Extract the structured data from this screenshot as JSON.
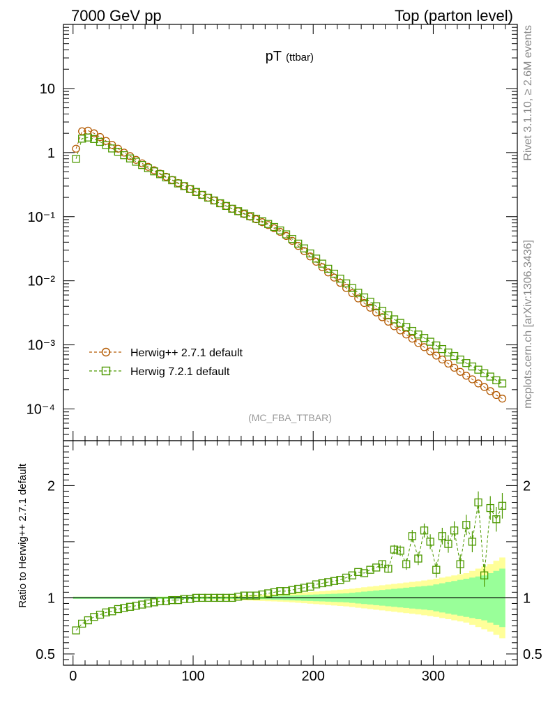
{
  "header": {
    "left": "7000 GeV pp",
    "right": "Top (parton level)"
  },
  "side": {
    "rivet": "Rivet 3.1.10, ≥ 2.6M events",
    "mcplots": "mcplots.cern.ch [arXiv:1306.3436]"
  },
  "title": {
    "main": "pT",
    "sub": "(ttbar)"
  },
  "analysis": "(MC_FBA_TTBAR)",
  "legend": [
    {
      "label": "Herwig++ 2.7.1 default",
      "color": "#b35900",
      "marker": "circle"
    },
    {
      "label": "Herwig 7.2.1 default",
      "color": "#4d9900",
      "marker": "square"
    }
  ],
  "ratio_ylabel": "Ratio to Herwig++ 2.7.1 default",
  "colors": {
    "band_inner": "#99ff99",
    "band_outer": "#ffff99",
    "ref": "#b35900",
    "mc": "#4d9900"
  },
  "chart_data": {
    "type": "scatter",
    "x_ticks": [
      "0",
      "100",
      "200",
      "300"
    ],
    "top_y_ticks": [
      "10",
      "1",
      "10⁻¹",
      "10⁻²",
      "10⁻³",
      "10⁻⁴"
    ],
    "ratio_y_ticks": [
      "2",
      "1",
      "0.5"
    ],
    "xlim": [
      -8,
      370
    ],
    "ylim_main": [
      3.2e-05,
      100
    ],
    "ylim_ratio": [
      0.4,
      2.4
    ],
    "y_scale": "log",
    "x": [
      2.5,
      7.5,
      12.5,
      17.5,
      22.5,
      27.5,
      32.5,
      37.5,
      42.5,
      47.5,
      52.5,
      57.5,
      62.5,
      67.5,
      72.5,
      77.5,
      82.5,
      87.5,
      92.5,
      97.5,
      102.5,
      107.5,
      112.5,
      117.5,
      122.5,
      127.5,
      132.5,
      137.5,
      142.5,
      147.5,
      152.5,
      157.5,
      162.5,
      167.5,
      172.5,
      177.5,
      182.5,
      187.5,
      192.5,
      197.5,
      202.5,
      207.5,
      212.5,
      217.5,
      222.5,
      227.5,
      232.5,
      237.5,
      242.5,
      247.5,
      252.5,
      257.5,
      262.5,
      267.5,
      272.5,
      277.5,
      282.5,
      287.5,
      292.5,
      297.5,
      302.5,
      307.5,
      312.5,
      317.5,
      322.5,
      327.5,
      332.5,
      337.5,
      342.5,
      347.5,
      352.5,
      357.5
    ],
    "series": [
      {
        "name": "Herwig++ 2.7.1 default",
        "values": [
          1.15,
          2.15,
          2.2,
          2.0,
          1.75,
          1.52,
          1.32,
          1.15,
          1.0,
          0.88,
          0.77,
          0.68,
          0.6,
          0.53,
          0.47,
          0.42,
          0.375,
          0.335,
          0.3,
          0.27,
          0.243,
          0.219,
          0.198,
          0.179,
          0.162,
          0.147,
          0.133,
          0.121,
          0.11,
          0.1,
          0.091,
          0.082,
          0.074,
          0.066,
          0.058,
          0.05,
          0.042,
          0.035,
          0.029,
          0.024,
          0.0198,
          0.0163,
          0.0135,
          0.0112,
          0.0093,
          0.0077,
          0.0064,
          0.0053,
          0.0045,
          0.0038,
          0.0032,
          0.0027,
          0.0023,
          0.00195,
          0.00168,
          0.00145,
          0.00125,
          0.00107,
          0.00092,
          0.00079,
          0.00068,
          0.00059,
          0.00051,
          0.00044,
          0.00038,
          0.00033,
          0.00029,
          0.00025,
          0.00022,
          0.00019,
          0.000165,
          0.000145
        ]
      },
      {
        "name": "Herwig 7.2.1 default",
        "values": [
          0.8,
          1.65,
          1.72,
          1.63,
          1.47,
          1.31,
          1.16,
          1.03,
          0.91,
          0.81,
          0.72,
          0.64,
          0.57,
          0.51,
          0.46,
          0.41,
          0.37,
          0.33,
          0.3,
          0.27,
          0.243,
          0.219,
          0.198,
          0.179,
          0.162,
          0.147,
          0.133,
          0.122,
          0.112,
          0.102,
          0.093,
          0.085,
          0.077,
          0.069,
          0.061,
          0.053,
          0.045,
          0.038,
          0.032,
          0.0267,
          0.0222,
          0.0185,
          0.0154,
          0.0129,
          0.0108,
          0.0091,
          0.0077,
          0.0065,
          0.0055,
          0.0047,
          0.004,
          0.0034,
          0.0029,
          0.0025,
          0.0022,
          0.0019,
          0.00165,
          0.00145,
          0.00128,
          0.00112,
          0.00098,
          0.00086,
          0.00076,
          0.00067,
          0.00059,
          0.00052,
          0.00046,
          0.00041,
          0.00036,
          0.00032,
          0.00028,
          0.00025
        ]
      }
    ],
    "ratio": [
      0.71,
      0.77,
      0.8,
      0.83,
      0.85,
      0.87,
      0.88,
      0.9,
      0.91,
      0.92,
      0.93,
      0.94,
      0.95,
      0.96,
      0.97,
      0.97,
      0.98,
      0.98,
      0.99,
      0.99,
      1.0,
      1.0,
      1.0,
      1.0,
      1.0,
      1.0,
      1.0,
      1.01,
      1.02,
      1.02,
      1.02,
      1.03,
      1.04,
      1.05,
      1.06,
      1.06,
      1.07,
      1.08,
      1.09,
      1.1,
      1.12,
      1.13,
      1.14,
      1.15,
      1.16,
      1.18,
      1.2,
      1.23,
      1.22,
      1.25,
      1.27,
      1.3,
      1.26,
      1.43,
      1.42,
      1.3,
      1.55,
      1.35,
      1.6,
      1.5,
      1.25,
      1.55,
      1.48,
      1.6,
      1.3,
      1.65,
      1.5,
      1.85,
      1.2,
      1.8,
      1.7,
      1.82
    ],
    "band_inner_half_width": [
      0.01,
      0.01,
      0.01,
      0.01,
      0.01,
      0.01,
      0.01,
      0.01,
      0.01,
      0.01,
      0.01,
      0.01,
      0.01,
      0.01,
      0.01,
      0.01,
      0.01,
      0.01,
      0.01,
      0.01,
      0.01,
      0.01,
      0.01,
      0.01,
      0.01,
      0.01,
      0.01,
      0.01,
      0.01,
      0.01,
      0.01,
      0.012,
      0.014,
      0.016,
      0.018,
      0.02,
      0.022,
      0.024,
      0.026,
      0.028,
      0.03,
      0.032,
      0.034,
      0.036,
      0.038,
      0.04,
      0.045,
      0.05,
      0.055,
      0.06,
      0.065,
      0.07,
      0.075,
      0.08,
      0.085,
      0.09,
      0.095,
      0.1,
      0.105,
      0.11,
      0.12,
      0.13,
      0.14,
      0.15,
      0.16,
      0.17,
      0.18,
      0.19,
      0.2,
      0.22,
      0.24,
      0.26
    ],
    "band_outer_half_width": [
      0.01,
      0.01,
      0.01,
      0.01,
      0.01,
      0.01,
      0.01,
      0.01,
      0.01,
      0.01,
      0.01,
      0.01,
      0.01,
      0.01,
      0.01,
      0.01,
      0.01,
      0.01,
      0.01,
      0.01,
      0.012,
      0.013,
      0.014,
      0.015,
      0.016,
      0.017,
      0.018,
      0.02,
      0.022,
      0.024,
      0.026,
      0.028,
      0.03,
      0.032,
      0.034,
      0.036,
      0.04,
      0.044,
      0.048,
      0.052,
      0.056,
      0.06,
      0.064,
      0.068,
      0.072,
      0.076,
      0.082,
      0.088,
      0.094,
      0.1,
      0.106,
      0.112,
      0.118,
      0.124,
      0.13,
      0.136,
      0.142,
      0.148,
      0.155,
      0.162,
      0.17,
      0.18,
      0.19,
      0.2,
      0.21,
      0.22,
      0.24,
      0.26,
      0.28,
      0.3,
      0.33,
      0.36
    ]
  }
}
